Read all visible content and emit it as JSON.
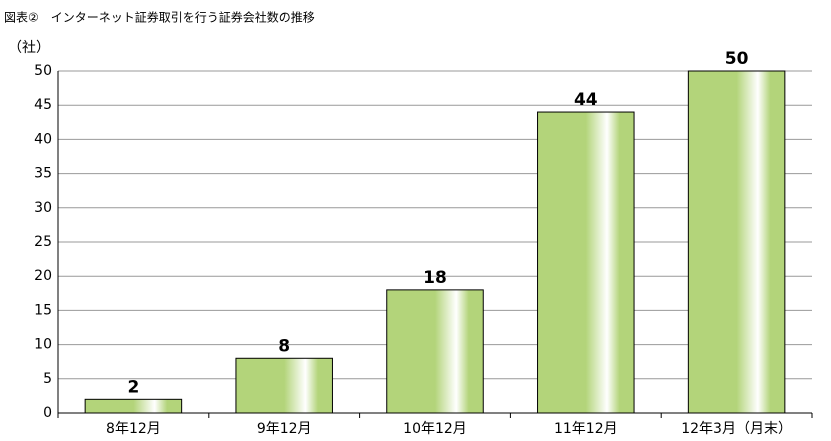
{
  "chart_data": {
    "type": "bar",
    "title": "図表②　インターネット証券取引を行う証券会社数の推移",
    "y_label": "（社）",
    "categories": [
      "8年12月",
      "9年12月",
      "10年12月",
      "11年12月",
      "12年3月（月末）"
    ],
    "values": [
      2,
      8,
      18,
      44,
      50
    ],
    "color": "#b3d47a",
    "ylim": [
      0,
      50
    ],
    "yticks": [
      0,
      5,
      10,
      15,
      20,
      25,
      30,
      35,
      40,
      45,
      50
    ],
    "grid": true
  }
}
